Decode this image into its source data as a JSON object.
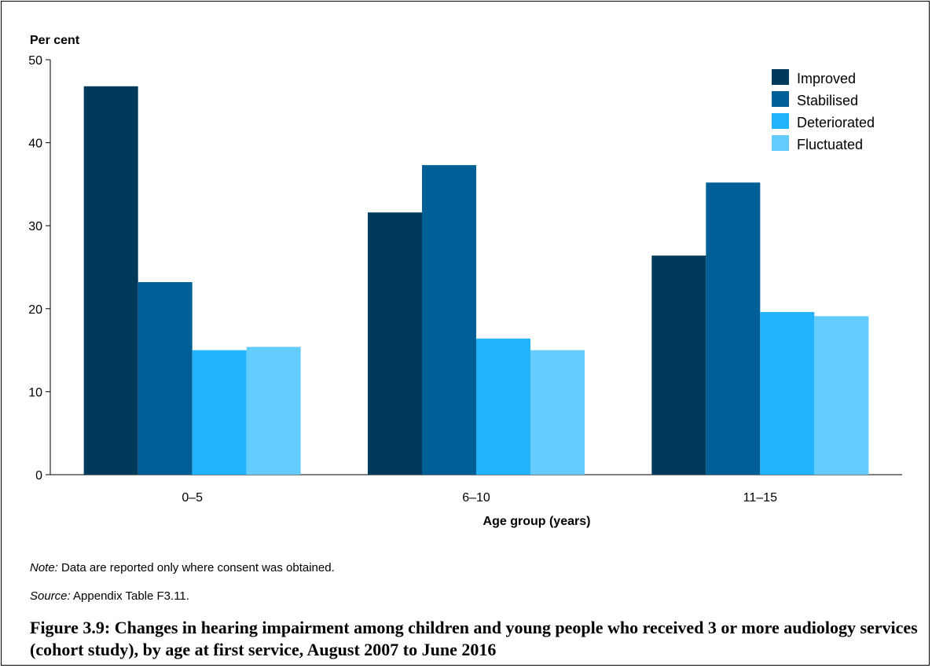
{
  "chart_data": {
    "type": "bar",
    "ylabel": "Per cent",
    "xlabel": "Age group (years)",
    "ylim": [
      0,
      50
    ],
    "yticks": [
      0,
      10,
      20,
      30,
      40,
      50
    ],
    "categories": [
      "0–5",
      "6–10",
      "11–15"
    ],
    "series": [
      {
        "name": "Improved",
        "color": "#003a5a",
        "values": [
          46.8,
          31.6,
          26.4
        ]
      },
      {
        "name": "Stabilised",
        "color": "#005f96",
        "values": [
          23.2,
          37.3,
          35.2
        ]
      },
      {
        "name": "Deteriorated",
        "color": "#23b3fc",
        "values": [
          15.0,
          16.4,
          19.6
        ]
      },
      {
        "name": "Fluctuated",
        "color": "#64cbfd",
        "values": [
          15.4,
          15.0,
          19.1
        ]
      }
    ],
    "legend_position": "top-right",
    "grid": false
  },
  "note": {
    "label": "Note:",
    "text": " Data are reported only where consent was obtained."
  },
  "source": {
    "label": "Source:",
    "text": " Appendix Table F3.11."
  },
  "caption": "Figure 3.9: Changes in hearing impairment among children and young people who received 3 or more audiology services (cohort study), by age at first service, August 2007 to June 2016"
}
